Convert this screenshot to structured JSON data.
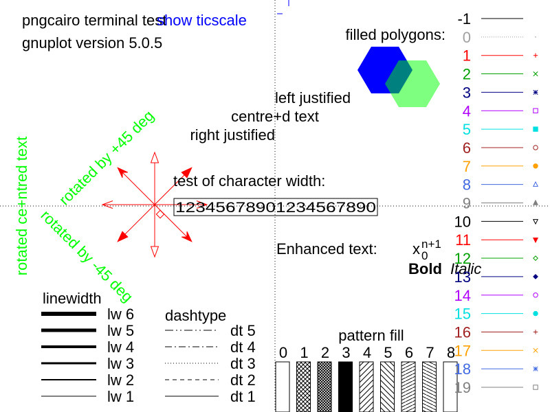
{
  "header": {
    "terminal": "pngcairo  terminal test",
    "version": "gnuplot version 5.0.5",
    "ticscale": "show ticscale"
  },
  "polygons": {
    "label": "filled polygons:",
    "colors": [
      "#0000ff",
      "#00c000"
    ]
  },
  "justify": {
    "left": "left justified",
    "centre": "centre+d text",
    "right": "right justified"
  },
  "rotated": {
    "plus45": "rotated by +45 deg",
    "minus45": "rotated by -45 deg",
    "centred": "rotated ce+ntred text"
  },
  "charwidth": {
    "label": "test of character width:",
    "digits": "12345678901234567890"
  },
  "enhanced": {
    "label": "Enhanced text:",
    "base": "x",
    "sub": "0",
    "sup": "n+1",
    "bold": "Bold",
    "italic": "Italic"
  },
  "linewidth": {
    "title": "linewidth",
    "items": [
      {
        "label": "lw 6",
        "width": 6
      },
      {
        "label": "lw 5",
        "width": 5
      },
      {
        "label": "lw 4",
        "width": 4
      },
      {
        "label": "lw 3",
        "width": 3
      },
      {
        "label": "lw 2",
        "width": 2
      },
      {
        "label": "lw 1",
        "width": 1
      }
    ]
  },
  "dashtype": {
    "title": "dashtype",
    "items": [
      {
        "label": "dt 5",
        "dash": "12,4,2,4,2,4"
      },
      {
        "label": "dt 4",
        "dash": "10,4,2,4"
      },
      {
        "label": "dt 3",
        "dash": "1,3"
      },
      {
        "label": "dt 2",
        "dash": "6,5"
      },
      {
        "label": "dt 1",
        "dash": ""
      }
    ]
  },
  "patternfill": {
    "title": "pattern fill",
    "labels": [
      "0",
      "1",
      "2",
      "3",
      "4",
      "5",
      "6",
      "7",
      "8"
    ]
  },
  "linetypes": [
    {
      "label": "-1",
      "color": "#000000",
      "point": "none"
    },
    {
      "label": "0",
      "color": "#a0a0a0",
      "point": "dot"
    },
    {
      "label": "1",
      "color": "#ff0000",
      "point": "plus"
    },
    {
      "label": "2",
      "color": "#00a000",
      "point": "cross"
    },
    {
      "label": "3",
      "color": "#000080",
      "point": "star"
    },
    {
      "label": "4",
      "color": "#b000ff",
      "point": "box"
    },
    {
      "label": "5",
      "color": "#00e0e0",
      "point": "fbox"
    },
    {
      "label": "6",
      "color": "#a02020",
      "point": "circle"
    },
    {
      "label": "7",
      "color": "#ffa000",
      "point": "fcircle"
    },
    {
      "label": "8",
      "color": "#4169e1",
      "point": "tri"
    },
    {
      "label": "9",
      "color": "#808080",
      "point": "ftri"
    },
    {
      "label": "10",
      "color": "#000000",
      "point": "itri"
    },
    {
      "label": "11",
      "color": "#ff0000",
      "point": "fitri"
    },
    {
      "label": "12",
      "color": "#00a000",
      "point": "diamond"
    },
    {
      "label": "13",
      "color": "#000080",
      "point": "fdiamond"
    },
    {
      "label": "14",
      "color": "#b000ff",
      "point": "circle"
    },
    {
      "label": "15",
      "color": "#00e0e0",
      "point": "fcircle"
    },
    {
      "label": "16",
      "color": "#a02020",
      "point": "plus"
    },
    {
      "label": "17",
      "color": "#ffa000",
      "point": "cross"
    },
    {
      "label": "18",
      "color": "#4169e1",
      "point": "star"
    },
    {
      "label": "19",
      "color": "#808080",
      "point": "box"
    }
  ]
}
